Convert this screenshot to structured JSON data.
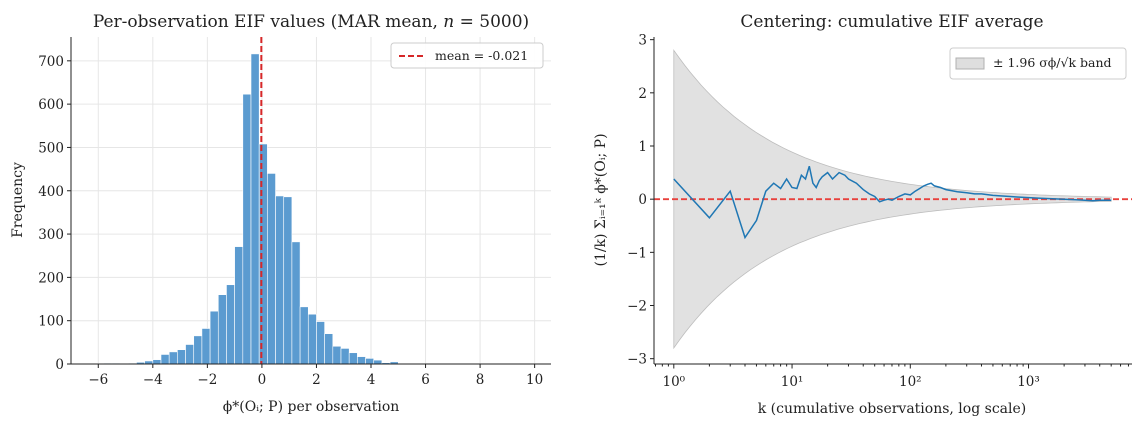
{
  "chart_data": [
    {
      "type": "bar",
      "title": "Per-observation EIF values  (MAR mean, n = 5000)",
      "title_parts": {
        "prefix": "Per-observation EIF values  (MAR mean, ",
        "var": "n",
        "suffix": " = 5000)"
      },
      "xlabel": "ϕ*(Oᵢ; P)  per observation",
      "ylabel": "Frequency",
      "xlim": [
        -7,
        10.6
      ],
      "ylim": [
        0,
        755
      ],
      "xticks": [
        -6,
        -4,
        -2,
        0,
        2,
        4,
        6,
        8,
        10
      ],
      "xtick_labels": [
        "−6",
        "−4",
        "−2",
        "0",
        "2",
        "4",
        "6",
        "8",
        "10"
      ],
      "yticks": [
        0,
        100,
        200,
        300,
        400,
        500,
        600,
        700
      ],
      "ytick_labels": [
        "0",
        "100",
        "200",
        "300",
        "400",
        "500",
        "600",
        "700"
      ],
      "grid": true,
      "bar_color": "#5b9bd0",
      "bins": {
        "start": -6.4,
        "width": 0.3,
        "counts": [
          1,
          1,
          2,
          2,
          1,
          2,
          4,
          7,
          10,
          22,
          28,
          33,
          45,
          65,
          82,
          122,
          160,
          183,
          271,
          623,
          716,
          508,
          440,
          388,
          386,
          282,
          132,
          115,
          98,
          70,
          41,
          36,
          26,
          17,
          13,
          9,
          3,
          5,
          1,
          1,
          1
        ]
      },
      "mean": -0.021,
      "mean_line_color": "#d62728",
      "legend": {
        "label": "mean = -0.021",
        "placement": "upper right"
      }
    },
    {
      "type": "line",
      "title": "Centering: cumulative EIF average",
      "xlabel": "k  (cumulative observations, log scale)",
      "ylabel": "(1/k) Σᵢ₌₁ᵏ ϕ*(Oᵢ; P)",
      "xscale": "log",
      "xlim": [
        0.68,
        7500
      ],
      "ylim": [
        -3.1,
        3.05
      ],
      "xticks": [
        1,
        10,
        100,
        1000
      ],
      "xtick_labels": [
        "10⁰",
        "10¹",
        "10²",
        "10³"
      ],
      "yticks": [
        -3,
        -2,
        -1,
        0,
        1,
        2,
        3
      ],
      "ytick_labels": [
        "−3",
        "−2",
        "−1",
        "0",
        "1",
        "2",
        "3"
      ],
      "grid": false,
      "band": {
        "sigma": 2.8,
        "multiplier": 1.96,
        "color": "#c8c8c8",
        "legend_label": "± 1.96 σϕ/√k band"
      },
      "reference_line": {
        "y": 0,
        "color": "#e8413c"
      },
      "legend": {
        "placement": "upper right"
      },
      "series": [
        {
          "color": "#1f77b4",
          "x": [
            1,
            2,
            3,
            4,
            5,
            6,
            7,
            8,
            9,
            10,
            11,
            12,
            13,
            14,
            15,
            16,
            17,
            18,
            20,
            22,
            25,
            28,
            30,
            35,
            40,
            45,
            50,
            55,
            60,
            65,
            70,
            80,
            90,
            100,
            110,
            120,
            130,
            140,
            150,
            160,
            180,
            200,
            250,
            300,
            350,
            400,
            500,
            600,
            700,
            800,
            1000,
            1200,
            1500,
            2000,
            2500,
            3000,
            3500,
            4000,
            4500,
            5000
          ],
          "y": [
            0.38,
            -0.35,
            0.15,
            -0.72,
            -0.4,
            0.15,
            0.3,
            0.2,
            0.38,
            0.22,
            0.2,
            0.45,
            0.38,
            0.62,
            0.3,
            0.22,
            0.35,
            0.42,
            0.5,
            0.38,
            0.5,
            0.45,
            0.38,
            0.3,
            0.18,
            0.1,
            0.05,
            -0.05,
            -0.02,
            0.0,
            -0.02,
            0.05,
            0.1,
            0.08,
            0.15,
            0.2,
            0.25,
            0.28,
            0.3,
            0.25,
            0.22,
            0.18,
            0.14,
            0.12,
            0.1,
            0.1,
            0.07,
            0.06,
            0.05,
            0.04,
            0.03,
            0.02,
            0.01,
            0.0,
            -0.01,
            -0.02,
            -0.03,
            -0.02,
            -0.02,
            -0.02
          ]
        }
      ]
    }
  ]
}
